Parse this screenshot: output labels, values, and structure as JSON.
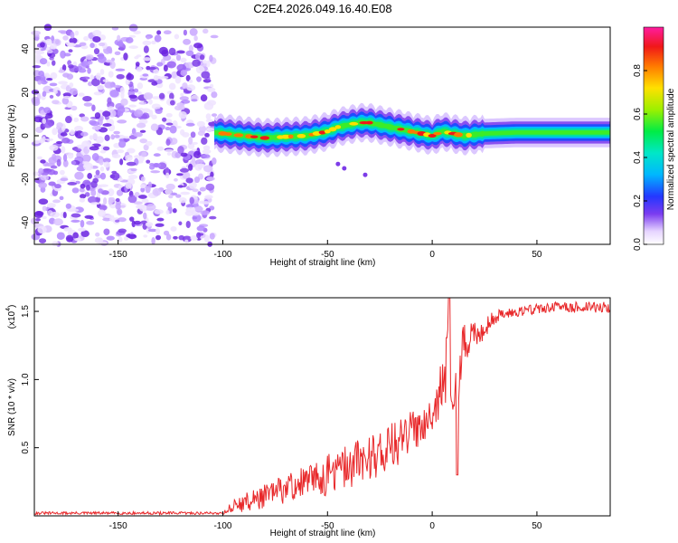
{
  "title": "C2E4.2026.049.16.40.E08",
  "chart_data": [
    {
      "type": "heatmap",
      "xlabel": "Height of straight line (km)",
      "ylabel": "Frequency (Hz)",
      "xlim": [
        -190,
        85
      ],
      "ylim": [
        -50,
        50
      ],
      "x_ticks": [
        -150,
        -100,
        -50,
        0,
        50
      ],
      "y_ticks": [
        -40,
        -20,
        0,
        20,
        40
      ],
      "grid": false,
      "colorbar": {
        "label": "Normalized spectral amplitude",
        "range": [
          0,
          1
        ],
        "ticks": [
          0.0,
          0.2,
          0.4,
          0.6,
          0.8
        ]
      },
      "noise_region_x": [
        -190,
        -104
      ],
      "band_center_hz": [
        [
          -104,
          1.5
        ],
        [
          -95,
          0.5
        ],
        [
          -90,
          0
        ],
        [
          -80,
          -1
        ],
        [
          -70,
          -0.5
        ],
        [
          -60,
          0
        ],
        [
          -50,
          2
        ],
        [
          -45,
          4
        ],
        [
          -40,
          5
        ],
        [
          -35,
          6
        ],
        [
          -30,
          6
        ],
        [
          -25,
          5
        ],
        [
          -20,
          4
        ],
        [
          -15,
          3
        ],
        [
          -10,
          2
        ],
        [
          -5,
          1
        ],
        [
          0,
          0
        ],
        [
          5,
          2
        ],
        [
          10,
          1
        ],
        [
          15,
          0
        ],
        [
          25,
          1
        ],
        [
          40,
          1.5
        ],
        [
          60,
          1.5
        ],
        [
          85,
          1.5
        ]
      ],
      "scattered_points": [
        [
          -45,
          -13
        ],
        [
          -42,
          -15
        ],
        [
          -32,
          -18
        ]
      ]
    },
    {
      "type": "line",
      "xlabel": "Height of straight line (km)",
      "ylabel": "SNR (10 * v/v)",
      "y_multiplier_label": "(x10",
      "y_multiplier_exp": "4",
      "xlim": [
        -190,
        85
      ],
      "ylim": [
        0,
        1.6
      ],
      "x_ticks": [
        -150,
        -100,
        -50,
        0,
        50
      ],
      "y_ticks": [
        0.5,
        1.0,
        1.5
      ],
      "y_tick_labels": [
        "0.5",
        "1.0",
        "1.5"
      ],
      "grid": false,
      "series": [
        {
          "name": "SNR",
          "color": "#e8282a",
          "envelope": {
            "x": [
              -190,
              -100,
              -95,
              -85,
              -75,
              -65,
              -55,
              -45,
              -35,
              -25,
              -15,
              -5,
              0,
              5,
              8,
              10,
              12,
              15,
              20,
              25,
              30,
              40,
              50,
              60,
              70,
              85
            ],
            "mean": [
              0.02,
              0.02,
              0.07,
              0.12,
              0.17,
              0.23,
              0.27,
              0.33,
              0.4,
              0.47,
              0.55,
              0.68,
              0.78,
              0.95,
              1.15,
              1.0,
              1.0,
              1.25,
              1.32,
              1.38,
              1.46,
              1.5,
              1.52,
              1.53,
              1.53,
              1.53
            ],
            "spread": [
              0.01,
              0.01,
              0.05,
              0.08,
              0.1,
              0.12,
              0.14,
              0.16,
              0.18,
              0.18,
              0.17,
              0.15,
              0.15,
              0.2,
              0.3,
              0.25,
              0.25,
              0.15,
              0.1,
              0.08,
              0.05,
              0.04,
              0.04,
              0.04,
              0.04,
              0.04
            ]
          },
          "features": [
            [
              8,
              1.6
            ],
            [
              12,
              0.3
            ]
          ]
        }
      ]
    }
  ]
}
